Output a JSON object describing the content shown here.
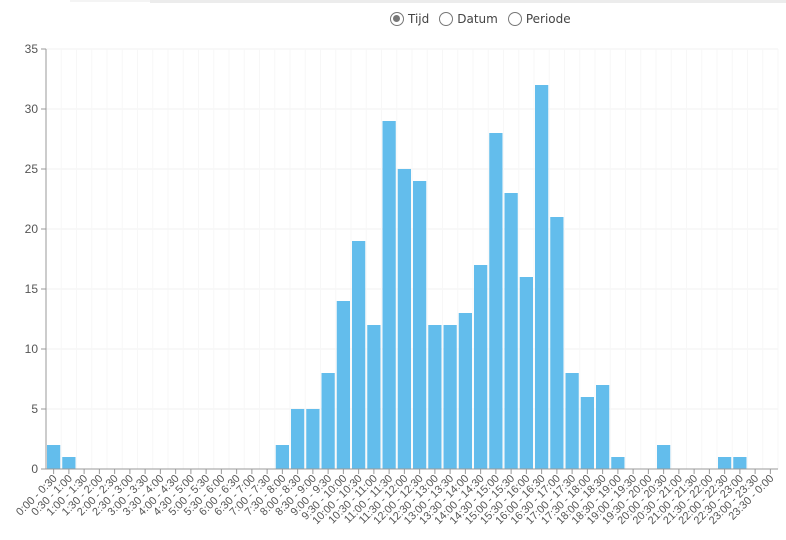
{
  "filter": {
    "options": [
      {
        "label": "Tijd",
        "checked": true
      },
      {
        "label": "Datum",
        "checked": false
      },
      {
        "label": "Periode",
        "checked": false
      }
    ]
  },
  "colors": {
    "bar": "#63bdec",
    "grid": "#f0f0f0",
    "axis": "#999999",
    "text": "#555555"
  },
  "chart_data": {
    "type": "bar",
    "title": "",
    "xlabel": "",
    "ylabel": "",
    "ylim": [
      0,
      35
    ],
    "yticks": [
      0,
      5,
      10,
      15,
      20,
      25,
      30,
      35
    ],
    "grid": true,
    "categories": [
      "0:00 - 0:30",
      "0:30 - 1:00",
      "1:00 - 1:30",
      "1:30 - 2:00",
      "2:00 - 2:30",
      "2:30 - 3:00",
      "3:00 - 3:30",
      "3:30 - 4:00",
      "4:00 - 4:30",
      "4:30 - 5:00",
      "5:00 - 5:30",
      "5:30 - 6:00",
      "6:00 - 6:30",
      "6:30 - 7:00",
      "7:00 - 7:30",
      "7:30 - 8:00",
      "8:00 - 8:30",
      "8:30 - 9:00",
      "9:00 - 9:30",
      "9:30 - 10:00",
      "10:00 - 10:30",
      "10:30 - 11:00",
      "11:00 - 11:30",
      "11:30 - 12:00",
      "12:00 - 12:30",
      "12:30 - 13:00",
      "13:00 - 13:30",
      "13:30 - 14:00",
      "14:00 - 14:30",
      "14:30 - 15:00",
      "15:00 - 15:30",
      "15:30 - 16:00",
      "16:00 - 16:30",
      "16:30 - 17:00",
      "17:00 - 17:30",
      "17:30 - 18:00",
      "18:00 - 18:30",
      "18:30 - 19:00",
      "19:00 - 19:30",
      "19:30 - 20:00",
      "20:00 - 20:30",
      "20:30 - 21:00",
      "21:00 - 21:30",
      "21:30 - 22:00",
      "22:00 - 22:30",
      "22:30 - 23:00",
      "23:00 - 23:30",
      "23:30 - 0:00"
    ],
    "values": [
      2,
      1,
      0,
      0,
      0,
      0,
      0,
      0,
      0,
      0,
      0,
      0,
      0,
      0,
      0,
      2,
      5,
      5,
      8,
      14,
      19,
      12,
      29,
      25,
      24,
      12,
      12,
      13,
      17,
      28,
      23,
      16,
      32,
      21,
      8,
      6,
      7,
      1,
      0,
      0,
      2,
      0,
      0,
      0,
      1,
      1,
      0,
      0
    ]
  }
}
